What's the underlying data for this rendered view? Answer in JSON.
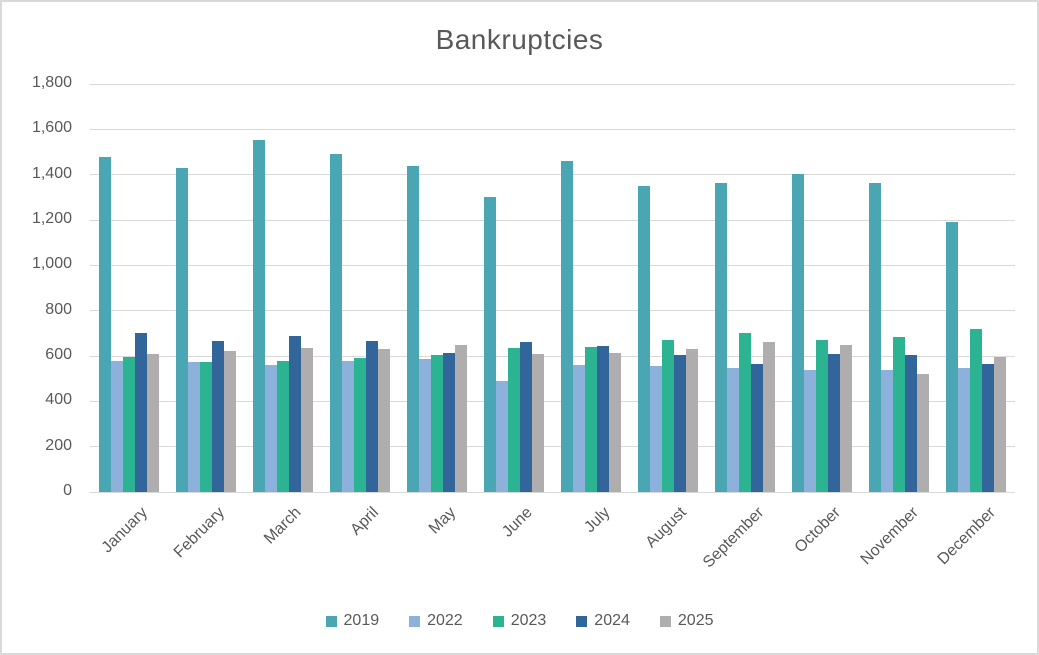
{
  "chart": {
    "title": "Bankruptcies",
    "chart_data": {
      "type": "bar",
      "title": "Bankruptcies",
      "xlabel": "",
      "ylabel": "",
      "grid": true,
      "legend_position": "bottom",
      "categories": [
        "January",
        "February",
        "March",
        "April",
        "May",
        "June",
        "July",
        "August",
        "September",
        "October",
        "November",
        "December"
      ],
      "series": [
        {
          "name": "2019",
          "color": "#4BA6B4",
          "values": [
            1480,
            1430,
            1555,
            1490,
            1440,
            1300,
            1460,
            1350,
            1365,
            1405,
            1365,
            1190
          ]
        },
        {
          "name": "2022",
          "color": "#8CB2DC",
          "values": [
            580,
            575,
            560,
            580,
            585,
            490,
            560,
            555,
            545,
            540,
            540,
            545
          ]
        },
        {
          "name": "2023",
          "color": "#2BB392",
          "values": [
            595,
            575,
            580,
            590,
            605,
            635,
            640,
            670,
            700,
            670,
            685,
            720
          ]
        },
        {
          "name": "2024",
          "color": "#32659A",
          "values": [
            700,
            665,
            690,
            665,
            615,
            660,
            645,
            605,
            565,
            610,
            605,
            565
          ]
        },
        {
          "name": "2025",
          "color": "#AFADAD",
          "values": [
            610,
            620,
            635,
            630,
            650,
            610,
            615,
            630,
            660,
            650,
            520,
            595
          ]
        }
      ],
      "y_axis": {
        "min": 0,
        "max": 1800,
        "step": 200,
        "tick_labels": [
          "0",
          "200",
          "400",
          "600",
          "800",
          "1,000",
          "1,200",
          "1,400",
          "1,600",
          "1,800"
        ]
      },
      "legend_entries": [
        "2019",
        "2022",
        "2023",
        "2024",
        "2025"
      ]
    },
    "colors": {
      "text": "#595959",
      "gridline": "#d9d9d9",
      "border": "#d9d9d9",
      "background": "#ffffff"
    }
  }
}
